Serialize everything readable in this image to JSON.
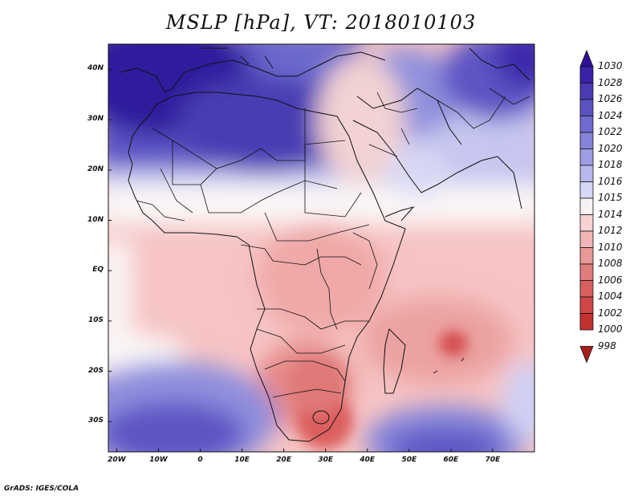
{
  "title": "MSLP [hPa], VT: 2018010103",
  "credit": "GrADS: IGES/COLA",
  "map": {
    "lat_labels": [
      "40N",
      "30N",
      "20N",
      "10N",
      "EQ",
      "10S",
      "20S",
      "30S"
    ],
    "lon_labels": [
      "20W",
      "10W",
      "0",
      "10E",
      "20E",
      "30E",
      "40E",
      "50E",
      "60E",
      "70E"
    ],
    "lat_range": [
      -36,
      45
    ],
    "lon_range": [
      -22,
      80
    ]
  },
  "colorbar": {
    "labels": [
      "1030",
      "1028",
      "1026",
      "1024",
      "1022",
      "1020",
      "1018",
      "1016",
      "1015",
      "1014",
      "1012",
      "1010",
      "1008",
      "1006",
      "1004",
      "1002",
      "1000",
      "998"
    ],
    "colors": [
      "#2e0f96",
      "#3a22a6",
      "#4a3ab4",
      "#5b52c2",
      "#6e6ccf",
      "#8484da",
      "#9d9de4",
      "#b8b8ee",
      "#d6d6f6",
      "#f8f3f3",
      "#f8d2d2",
      "#f2b5b5",
      "#e99898",
      "#e07c7c",
      "#d95f5f",
      "#d04545",
      "#c23030",
      "#a61e1e"
    ]
  }
}
